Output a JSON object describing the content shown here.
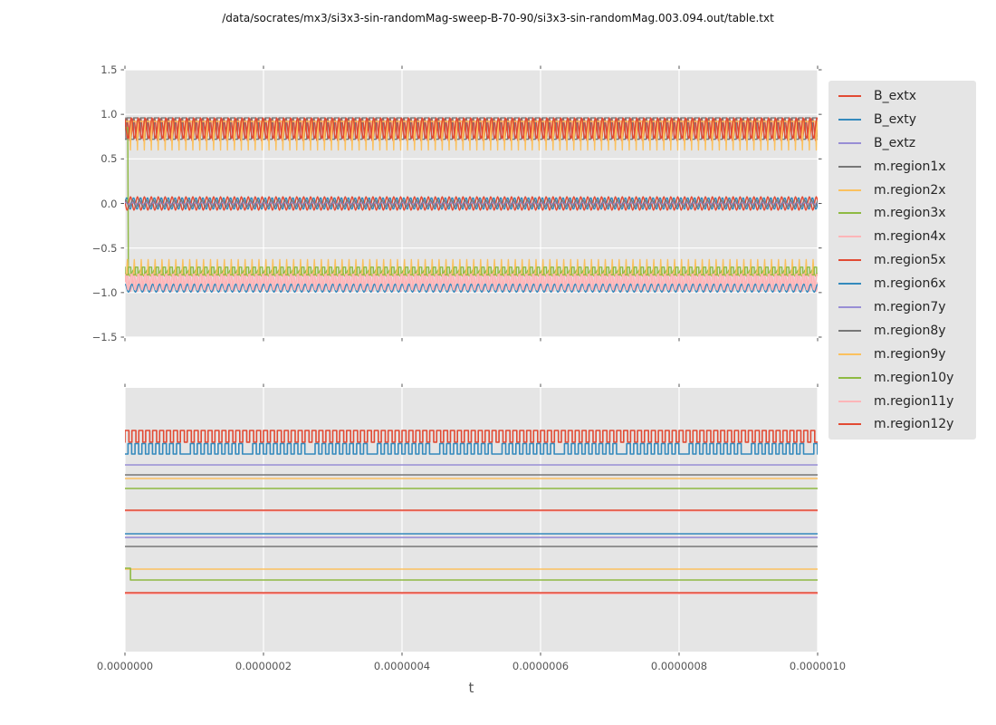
{
  "figure": {
    "title": "/data/socrates/mx3/si3x3-sin-randomMag-sweep-B-70-90/si3x3-sin-randomMag.003.094.out/table.txt",
    "xlabel": "t",
    "background": "#ffffff",
    "axes_background": "#e5e5e5",
    "grid_color": "#ffffff",
    "tick_color": "#555555",
    "label_color": "#555555"
  },
  "legend": {
    "items": [
      {
        "label": "B_extx",
        "color": "#E24A33"
      },
      {
        "label": "B_exty",
        "color": "#348ABD"
      },
      {
        "label": "B_extz",
        "color": "#988ED5"
      },
      {
        "label": "m.region1x",
        "color": "#777777"
      },
      {
        "label": "m.region2x",
        "color": "#FBC15E"
      },
      {
        "label": "m.region3x",
        "color": "#8EBA42"
      },
      {
        "label": "m.region4x",
        "color": "#FFB5B8"
      },
      {
        "label": "m.region5x",
        "color": "#E24A33"
      },
      {
        "label": "m.region6x",
        "color": "#348ABD"
      },
      {
        "label": "m.region7y",
        "color": "#988ED5"
      },
      {
        "label": "m.region8y",
        "color": "#777777"
      },
      {
        "label": "m.region9y",
        "color": "#FBC15E"
      },
      {
        "label": "m.region10y",
        "color": "#8EBA42"
      },
      {
        "label": "m.region11y",
        "color": "#FFB5B8"
      },
      {
        "label": "m.region12y",
        "color": "#E24A33"
      }
    ]
  },
  "chart_data": [
    {
      "type": "line",
      "subplot": "top",
      "xlabel": "t",
      "xlim": [
        0,
        1e-06
      ],
      "xticks": [
        0,
        2e-07,
        4e-07,
        6e-07,
        8e-07,
        1e-06
      ],
      "xticklabels": [
        "0.0000000",
        "0.0000002",
        "0.0000004",
        "0.0000006",
        "0.0000008",
        "0.0000010"
      ],
      "ylim": [
        -1.5,
        1.5
      ],
      "yticks": [
        1.5,
        1.0,
        0.5,
        0.0,
        -0.5,
        -1.0,
        -1.5
      ],
      "yticklabels": [
        "1.5",
        "1.0",
        "0.5",
        "0.0",
        "−0.5",
        "−1.0",
        "−1.5"
      ],
      "grid": true,
      "legend_position": "right-of-axes",
      "note": "15 series oscillating at ~100 cycles over the x range; values are waveform descriptors read from the plot",
      "series": [
        {
          "name": "B_extx",
          "color": "#E24A33",
          "wave": "sine",
          "center": 0.83,
          "amp": 0.13,
          "cycles": 100,
          "phase": 0,
          "lw": 1.5
        },
        {
          "name": "B_exty",
          "color": "#348ABD",
          "wave": "sine",
          "center": 0.0,
          "amp": 0.065,
          "cycles": 100,
          "phase": 0,
          "lw": 1.4
        },
        {
          "name": "B_extz",
          "color": "#988ED5",
          "wave": "sine",
          "center": 0.0,
          "amp": 0.012,
          "cycles": 100,
          "phase": 1.2,
          "lw": 1.4
        },
        {
          "name": "m.region1x",
          "color": "#777777",
          "wave": "square",
          "hi": 0.96,
          "lo": 0.72,
          "duty": 0.62,
          "cycles": 100,
          "phase": 0.25,
          "lw": 1.4
        },
        {
          "name": "m.region2x",
          "color": "#FBC15E",
          "wave": "spikes",
          "base": 0.92,
          "spike": 0.6,
          "width": 0.25,
          "offset": 0.8,
          "cycles": 100,
          "lw": 1.4
        },
        {
          "name": "m.region3x",
          "color": "#8EBA42",
          "wave": "sine",
          "center": -0.78,
          "amp": 0.035,
          "cycles": 100,
          "phase": 0,
          "lw": 1.4,
          "initial": 0.85
        },
        {
          "name": "m.region4x",
          "color": "#FFB5B8",
          "wave": "sine",
          "center": -0.885,
          "amp": 0.105,
          "cycles": 100,
          "phase": 0,
          "lw": 2.0
        },
        {
          "name": "m.region5x",
          "color": "#E24A33",
          "wave": "sine",
          "center": 0.0,
          "amp": 0.075,
          "cycles": 100,
          "phase": 2.8,
          "lw": 1.4
        },
        {
          "name": "m.region6x",
          "color": "#348ABD",
          "wave": "sine",
          "center": -0.95,
          "amp": 0.045,
          "cycles": 100,
          "phase": 1.5,
          "lw": 1.4
        },
        {
          "name": "m.region7y",
          "color": "#988ED5",
          "wave": "sine",
          "center": 0.0,
          "amp": 0.012,
          "cycles": 100,
          "phase": 0.5,
          "lw": 1.4
        },
        {
          "name": "m.region8y",
          "color": "#777777",
          "wave": "sine",
          "center": 0.0,
          "amp": 0.04,
          "cycles": 100,
          "phase": 0.9,
          "lw": 1.2
        },
        {
          "name": "m.region9y",
          "color": "#FBC15E",
          "wave": "spikes",
          "base": -0.8,
          "spike": -0.63,
          "width": 0.25,
          "offset": 0.35,
          "cycles": 100,
          "lw": 1.4
        },
        {
          "name": "m.region10y",
          "color": "#8EBA42",
          "wave": "square",
          "hi": -0.715,
          "lo": -0.8,
          "duty": 0.35,
          "cycles": 100,
          "phase": 0.5,
          "lw": 1.4
        },
        {
          "name": "m.region11y",
          "color": "#FFB5B8",
          "wave": "sine",
          "center": -0.88,
          "amp": 0.09,
          "cycles": 100,
          "phase": 1.8,
          "lw": 1.6
        },
        {
          "name": "m.region12y",
          "color": "#E24A33",
          "wave": "sine",
          "center": 0.845,
          "amp": 0.115,
          "cycles": 100,
          "phase": 2.1,
          "lw": 1.5
        }
      ]
    },
    {
      "type": "line",
      "subplot": "bottom",
      "xlim": [
        0,
        1e-06
      ],
      "grid": true,
      "yticklabels": [],
      "unit": "axis_fraction_from_top (y axis unlabeled in source plot)",
      "series": [
        {
          "name": "B_extx",
          "color": "#E24A33",
          "wave": "square",
          "hi": 0.1615,
          "lo": 0.206,
          "duty": 0.58,
          "cycles": 100,
          "phase": 0,
          "lw": 1.6
        },
        {
          "name": "B_exty",
          "color": "#348ABD",
          "wave": "square",
          "hi": 0.2115,
          "lo": 0.251,
          "duty": 0.52,
          "cycles": 100,
          "phase": 0.45,
          "slip_every": 9,
          "lw": 1.6
        },
        {
          "name": "B_extz",
          "color": "#988ED5",
          "wave": "flat",
          "level": 0.292,
          "lw": 1.6
        },
        {
          "name": "m.region1x",
          "color": "#777777",
          "wave": "flat",
          "level": 0.33,
          "lw": 1.6
        },
        {
          "name": "m.region2x",
          "color": "#FBC15E",
          "wave": "flat",
          "level": 0.3436,
          "lw": 1.6
        },
        {
          "name": "m.region3x",
          "color": "#8EBA42",
          "wave": "flat",
          "level": 0.3814,
          "lw": 1.6
        },
        {
          "name": "m.region4x",
          "color": "#FFB5B8",
          "wave": "flat",
          "level": 0.4656,
          "lw": 1.9
        },
        {
          "name": "m.region5x",
          "color": "#E24A33",
          "wave": "flat",
          "level": 0.4639,
          "lw": 1.6
        },
        {
          "name": "m.region6x",
          "color": "#348ABD",
          "wave": "flat",
          "level": 0.5532,
          "lw": 1.6
        },
        {
          "name": "m.region7y",
          "color": "#988ED5",
          "wave": "flat",
          "level": 0.5672,
          "lw": 1.6
        },
        {
          "name": "m.region8y",
          "color": "#777777",
          "wave": "flat",
          "level": 0.6013,
          "lw": 1.6
        },
        {
          "name": "m.region9y",
          "color": "#FBC15E",
          "wave": "flat",
          "level": 0.6873,
          "lw": 1.6
        },
        {
          "name": "m.region10y",
          "color": "#8EBA42",
          "wave": "step",
          "level_start": 0.6838,
          "level_end": 0.7285,
          "step_t": 0.008,
          "lw": 1.6
        },
        {
          "name": "m.region11y",
          "color": "#FFB5B8",
          "wave": "flat",
          "level": 0.7801,
          "lw": 1.9
        },
        {
          "name": "m.region12y",
          "color": "#E24A33",
          "wave": "flat",
          "level": 0.7766,
          "lw": 1.6
        }
      ]
    }
  ]
}
